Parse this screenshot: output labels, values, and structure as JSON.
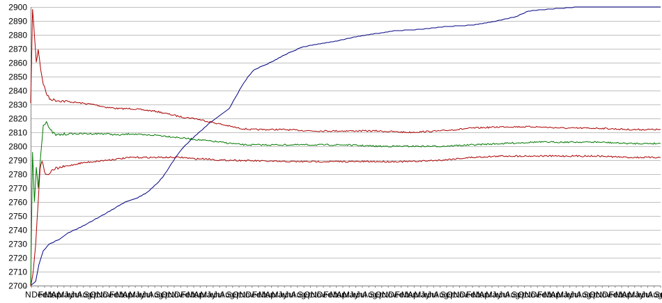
{
  "chart_data": {
    "type": "line",
    "title": "",
    "xlabel": "",
    "ylabel": "",
    "ylim": [
      2700,
      2900
    ],
    "yticks": [
      2700,
      2710,
      2720,
      2730,
      2740,
      2750,
      2760,
      2770,
      2780,
      2790,
      2800,
      2810,
      2820,
      2830,
      2840,
      2850,
      2860,
      2870,
      2880,
      2890,
      2900
    ],
    "xlim": [
      0,
      100
    ],
    "x_tick_labels": [
      "N",
      "Dec",
      "Feb",
      "Mar",
      "Apr",
      "May",
      "Jun",
      "Jul",
      "Aug",
      "Sep",
      "Oct",
      "Nov",
      "Dec",
      "Feb",
      "Mar",
      "Apr",
      "May",
      "Jun",
      "Jul",
      "Aug",
      "Sep",
      "Oct",
      "Nov",
      "Dec",
      "Feb",
      "Mar",
      "Apr",
      "May",
      "Jun",
      "Jul",
      "Aug",
      "Sep",
      "Oct",
      "Nov",
      "Dec",
      "Feb",
      "Mar",
      "Apr",
      "May",
      "Jun",
      "Jul",
      "Aug",
      "Sep",
      "Oct",
      "Nov",
      "Dec",
      "Feb",
      "Mar",
      "Apr",
      "May",
      "Jun",
      "Jul",
      "Aug",
      "Sep",
      "Oct",
      "Nov",
      "Dec",
      "Feb",
      "Mar",
      "Apr",
      "May",
      "Jun",
      "Jul",
      "Aug",
      "Sep",
      "Oct",
      "Nov",
      "Dec",
      "Feb",
      "Mar",
      "Apr",
      "May",
      "Jun",
      "Jul",
      "Aug",
      "Sep",
      "Oct",
      "Nov",
      "Dec",
      "Feb",
      "Mar",
      "Apr",
      "May",
      "Jun",
      "Jul",
      "Aug",
      "Sep",
      "Oct",
      "Nov",
      "Dec",
      "Feb",
      "Mar",
      "Apr",
      "May",
      "Jun",
      "Jul",
      "Aug",
      "Sep",
      "Oct"
    ],
    "grid": true,
    "legend": "none",
    "series": [
      {
        "color": "#000080",
        "points": [
          [
            0,
            2700
          ],
          [
            0.8,
            2703
          ],
          [
            1.3,
            2715
          ],
          [
            2,
            2725
          ],
          [
            3,
            2730
          ],
          [
            4.5,
            2733
          ],
          [
            6,
            2738
          ],
          [
            8,
            2742
          ],
          [
            10,
            2747
          ],
          [
            12,
            2752
          ],
          [
            13.5,
            2756
          ],
          [
            15,
            2760
          ],
          [
            17,
            2763
          ],
          [
            18.5,
            2767
          ],
          [
            20,
            2773
          ],
          [
            21,
            2778
          ],
          [
            22,
            2785
          ],
          [
            23,
            2792
          ],
          [
            24,
            2798
          ],
          [
            25.5,
            2805
          ],
          [
            27,
            2811
          ],
          [
            28.5,
            2817
          ],
          [
            30,
            2822
          ],
          [
            31.5,
            2827
          ],
          [
            32.5,
            2835
          ],
          [
            33.5,
            2843
          ],
          [
            34.5,
            2850
          ],
          [
            35.5,
            2855
          ],
          [
            37,
            2858
          ],
          [
            38.5,
            2861
          ],
          [
            40,
            2865
          ],
          [
            41.5,
            2868
          ],
          [
            43,
            2871
          ],
          [
            45,
            2873
          ],
          [
            48,
            2875
          ],
          [
            50,
            2877
          ],
          [
            52,
            2879
          ],
          [
            55,
            2881
          ],
          [
            58,
            2883
          ],
          [
            62,
            2884
          ],
          [
            66,
            2886
          ],
          [
            70,
            2887
          ],
          [
            74,
            2890
          ],
          [
            77,
            2893
          ],
          [
            79,
            2897
          ],
          [
            81,
            2898
          ],
          [
            84,
            2899
          ],
          [
            87,
            2900
          ],
          [
            100,
            2900
          ]
        ]
      },
      {
        "color": "#aa0000",
        "points": [
          [
            0,
            2830
          ],
          [
            0.3,
            2898
          ],
          [
            0.6,
            2880
          ],
          [
            0.9,
            2860
          ],
          [
            1.2,
            2870
          ],
          [
            1.6,
            2855
          ],
          [
            2,
            2845
          ],
          [
            2.5,
            2838
          ],
          [
            3,
            2834
          ],
          [
            4,
            2833
          ],
          [
            6,
            2832
          ],
          [
            8,
            2831
          ],
          [
            10,
            2830
          ],
          [
            12,
            2828
          ],
          [
            14,
            2827
          ],
          [
            16,
            2827
          ],
          [
            18,
            2826
          ],
          [
            20,
            2825
          ],
          [
            22,
            2823
          ],
          [
            24,
            2821
          ],
          [
            26,
            2820
          ],
          [
            28,
            2818
          ],
          [
            30,
            2816
          ],
          [
            32,
            2814
          ],
          [
            33,
            2813
          ],
          [
            35,
            2812
          ],
          [
            40,
            2812
          ],
          [
            45,
            2811
          ],
          [
            50,
            2811
          ],
          [
            55,
            2811
          ],
          [
            60,
            2810
          ],
          [
            65,
            2811
          ],
          [
            70,
            2813
          ],
          [
            75,
            2814
          ],
          [
            80,
            2814
          ],
          [
            85,
            2813
          ],
          [
            90,
            2813
          ],
          [
            95,
            2812
          ],
          [
            100,
            2812
          ]
        ]
      },
      {
        "color": "#007700",
        "points": [
          [
            0,
            2700
          ],
          [
            0.3,
            2795
          ],
          [
            0.6,
            2760
          ],
          [
            0.9,
            2785
          ],
          [
            1.2,
            2770
          ],
          [
            1.6,
            2795
          ],
          [
            2,
            2815
          ],
          [
            2.5,
            2818
          ],
          [
            3,
            2812
          ],
          [
            4,
            2808
          ],
          [
            6,
            2809
          ],
          [
            8,
            2809
          ],
          [
            10,
            2809
          ],
          [
            12,
            2809
          ],
          [
            14,
            2808
          ],
          [
            16,
            2809
          ],
          [
            18,
            2808
          ],
          [
            20,
            2808
          ],
          [
            22,
            2807
          ],
          [
            24,
            2806
          ],
          [
            26,
            2805
          ],
          [
            28,
            2804
          ],
          [
            30,
            2803
          ],
          [
            32,
            2802
          ],
          [
            34,
            2801
          ],
          [
            40,
            2801
          ],
          [
            45,
            2801
          ],
          [
            50,
            2801
          ],
          [
            55,
            2800
          ],
          [
            60,
            2800
          ],
          [
            65,
            2800
          ],
          [
            70,
            2801
          ],
          [
            75,
            2802
          ],
          [
            80,
            2803
          ],
          [
            85,
            2803
          ],
          [
            90,
            2803
          ],
          [
            95,
            2802
          ],
          [
            100,
            2802
          ]
        ]
      },
      {
        "color": "#aa0000",
        "points": [
          [
            0,
            2700
          ],
          [
            0.4,
            2710
          ],
          [
            0.8,
            2730
          ],
          [
            1.2,
            2760
          ],
          [
            1.5,
            2785
          ],
          [
            1.8,
            2790
          ],
          [
            2.2,
            2782
          ],
          [
            2.6,
            2779
          ],
          [
            3,
            2781
          ],
          [
            4,
            2784
          ],
          [
            6,
            2786
          ],
          [
            8,
            2788
          ],
          [
            10,
            2789
          ],
          [
            12,
            2790
          ],
          [
            14,
            2791
          ],
          [
            16,
            2792
          ],
          [
            18,
            2792
          ],
          [
            20,
            2792
          ],
          [
            22,
            2792
          ],
          [
            24,
            2792
          ],
          [
            26,
            2791
          ],
          [
            28,
            2791
          ],
          [
            30,
            2790
          ],
          [
            32,
            2790
          ],
          [
            40,
            2789
          ],
          [
            45,
            2789
          ],
          [
            50,
            2789
          ],
          [
            55,
            2789
          ],
          [
            60,
            2789
          ],
          [
            65,
            2790
          ],
          [
            70,
            2792
          ],
          [
            75,
            2793
          ],
          [
            80,
            2793
          ],
          [
            85,
            2793
          ],
          [
            90,
            2793
          ],
          [
            95,
            2792
          ],
          [
            100,
            2792
          ]
        ]
      }
    ]
  }
}
